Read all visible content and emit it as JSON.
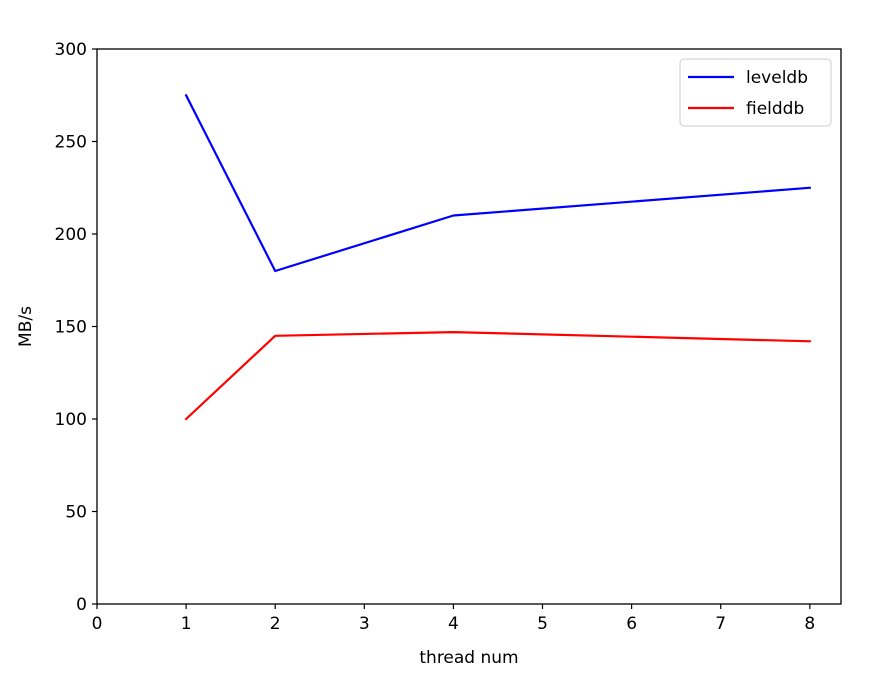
{
  "chart_data": {
    "type": "line",
    "title": "",
    "xlabel": "thread num",
    "ylabel": "MB/s",
    "xlim": [
      0,
      8.35
    ],
    "ylim": [
      0,
      300
    ],
    "xticks": [
      0,
      1,
      2,
      3,
      4,
      5,
      6,
      7,
      8
    ],
    "yticks": [
      0,
      50,
      100,
      150,
      200,
      250,
      300
    ],
    "grid": false,
    "legend_position": "top-right",
    "series": [
      {
        "name": "leveldb",
        "color": "#0000ff",
        "x": [
          1,
          2,
          4,
          8
        ],
        "y": [
          275,
          180,
          210,
          225
        ]
      },
      {
        "name": "fielddb",
        "color": "#ff0000",
        "x": [
          1,
          2,
          4,
          8
        ],
        "y": [
          100,
          145,
          147,
          142
        ]
      }
    ]
  }
}
